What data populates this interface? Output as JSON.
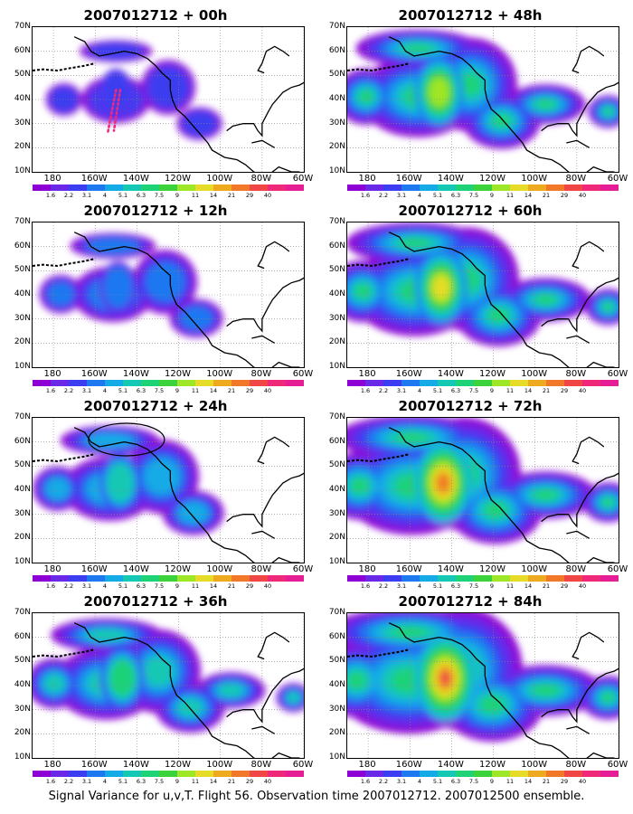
{
  "panels": [
    {
      "title": "2007012712 + 00h",
      "level": 0,
      "hasTrack": true,
      "hasCircle": false
    },
    {
      "title": "2007012712 + 12h",
      "level": 1,
      "hasTrack": false,
      "hasCircle": false
    },
    {
      "title": "2007012712 + 24h",
      "level": 2,
      "hasTrack": false,
      "hasCircle": true
    },
    {
      "title": "2007012712 + 36h",
      "level": 3,
      "hasTrack": false,
      "hasCircle": false
    },
    {
      "title": "2007012712 + 48h",
      "level": 4,
      "hasTrack": false,
      "hasCircle": false
    },
    {
      "title": "2007012712 + 60h",
      "level": 5,
      "hasTrack": false,
      "hasCircle": false
    },
    {
      "title": "2007012712 + 72h",
      "level": 6,
      "hasTrack": false,
      "hasCircle": false
    },
    {
      "title": "2007012712 + 84h",
      "level": 7,
      "hasTrack": false,
      "hasCircle": false
    }
  ],
  "axes": {
    "lat_labels": [
      "70N",
      "60N",
      "50N",
      "40N",
      "30N",
      "20N",
      "10N"
    ],
    "lon_labels": [
      "180",
      "160W",
      "140W",
      "120W",
      "100W",
      "80W",
      "60W"
    ]
  },
  "colorbar": {
    "colors": [
      "#8c00d4",
      "#6a28e8",
      "#3c3cf0",
      "#1e78f0",
      "#14aae6",
      "#14c8b4",
      "#1ed278",
      "#3cd23c",
      "#9ee628",
      "#e6dc28",
      "#eeaa1e",
      "#f07828",
      "#f04646",
      "#f0287a",
      "#e61e96"
    ],
    "labels": [
      "1.6",
      "2.2",
      "3.1",
      "4",
      "5.1",
      "6.3",
      "7.5",
      "9",
      "11",
      "14",
      "21",
      "29",
      "40"
    ]
  },
  "caption": "Signal Variance for u,v,T. Flight 56. Observation time 2007012712. 2007012500 ensemble."
}
